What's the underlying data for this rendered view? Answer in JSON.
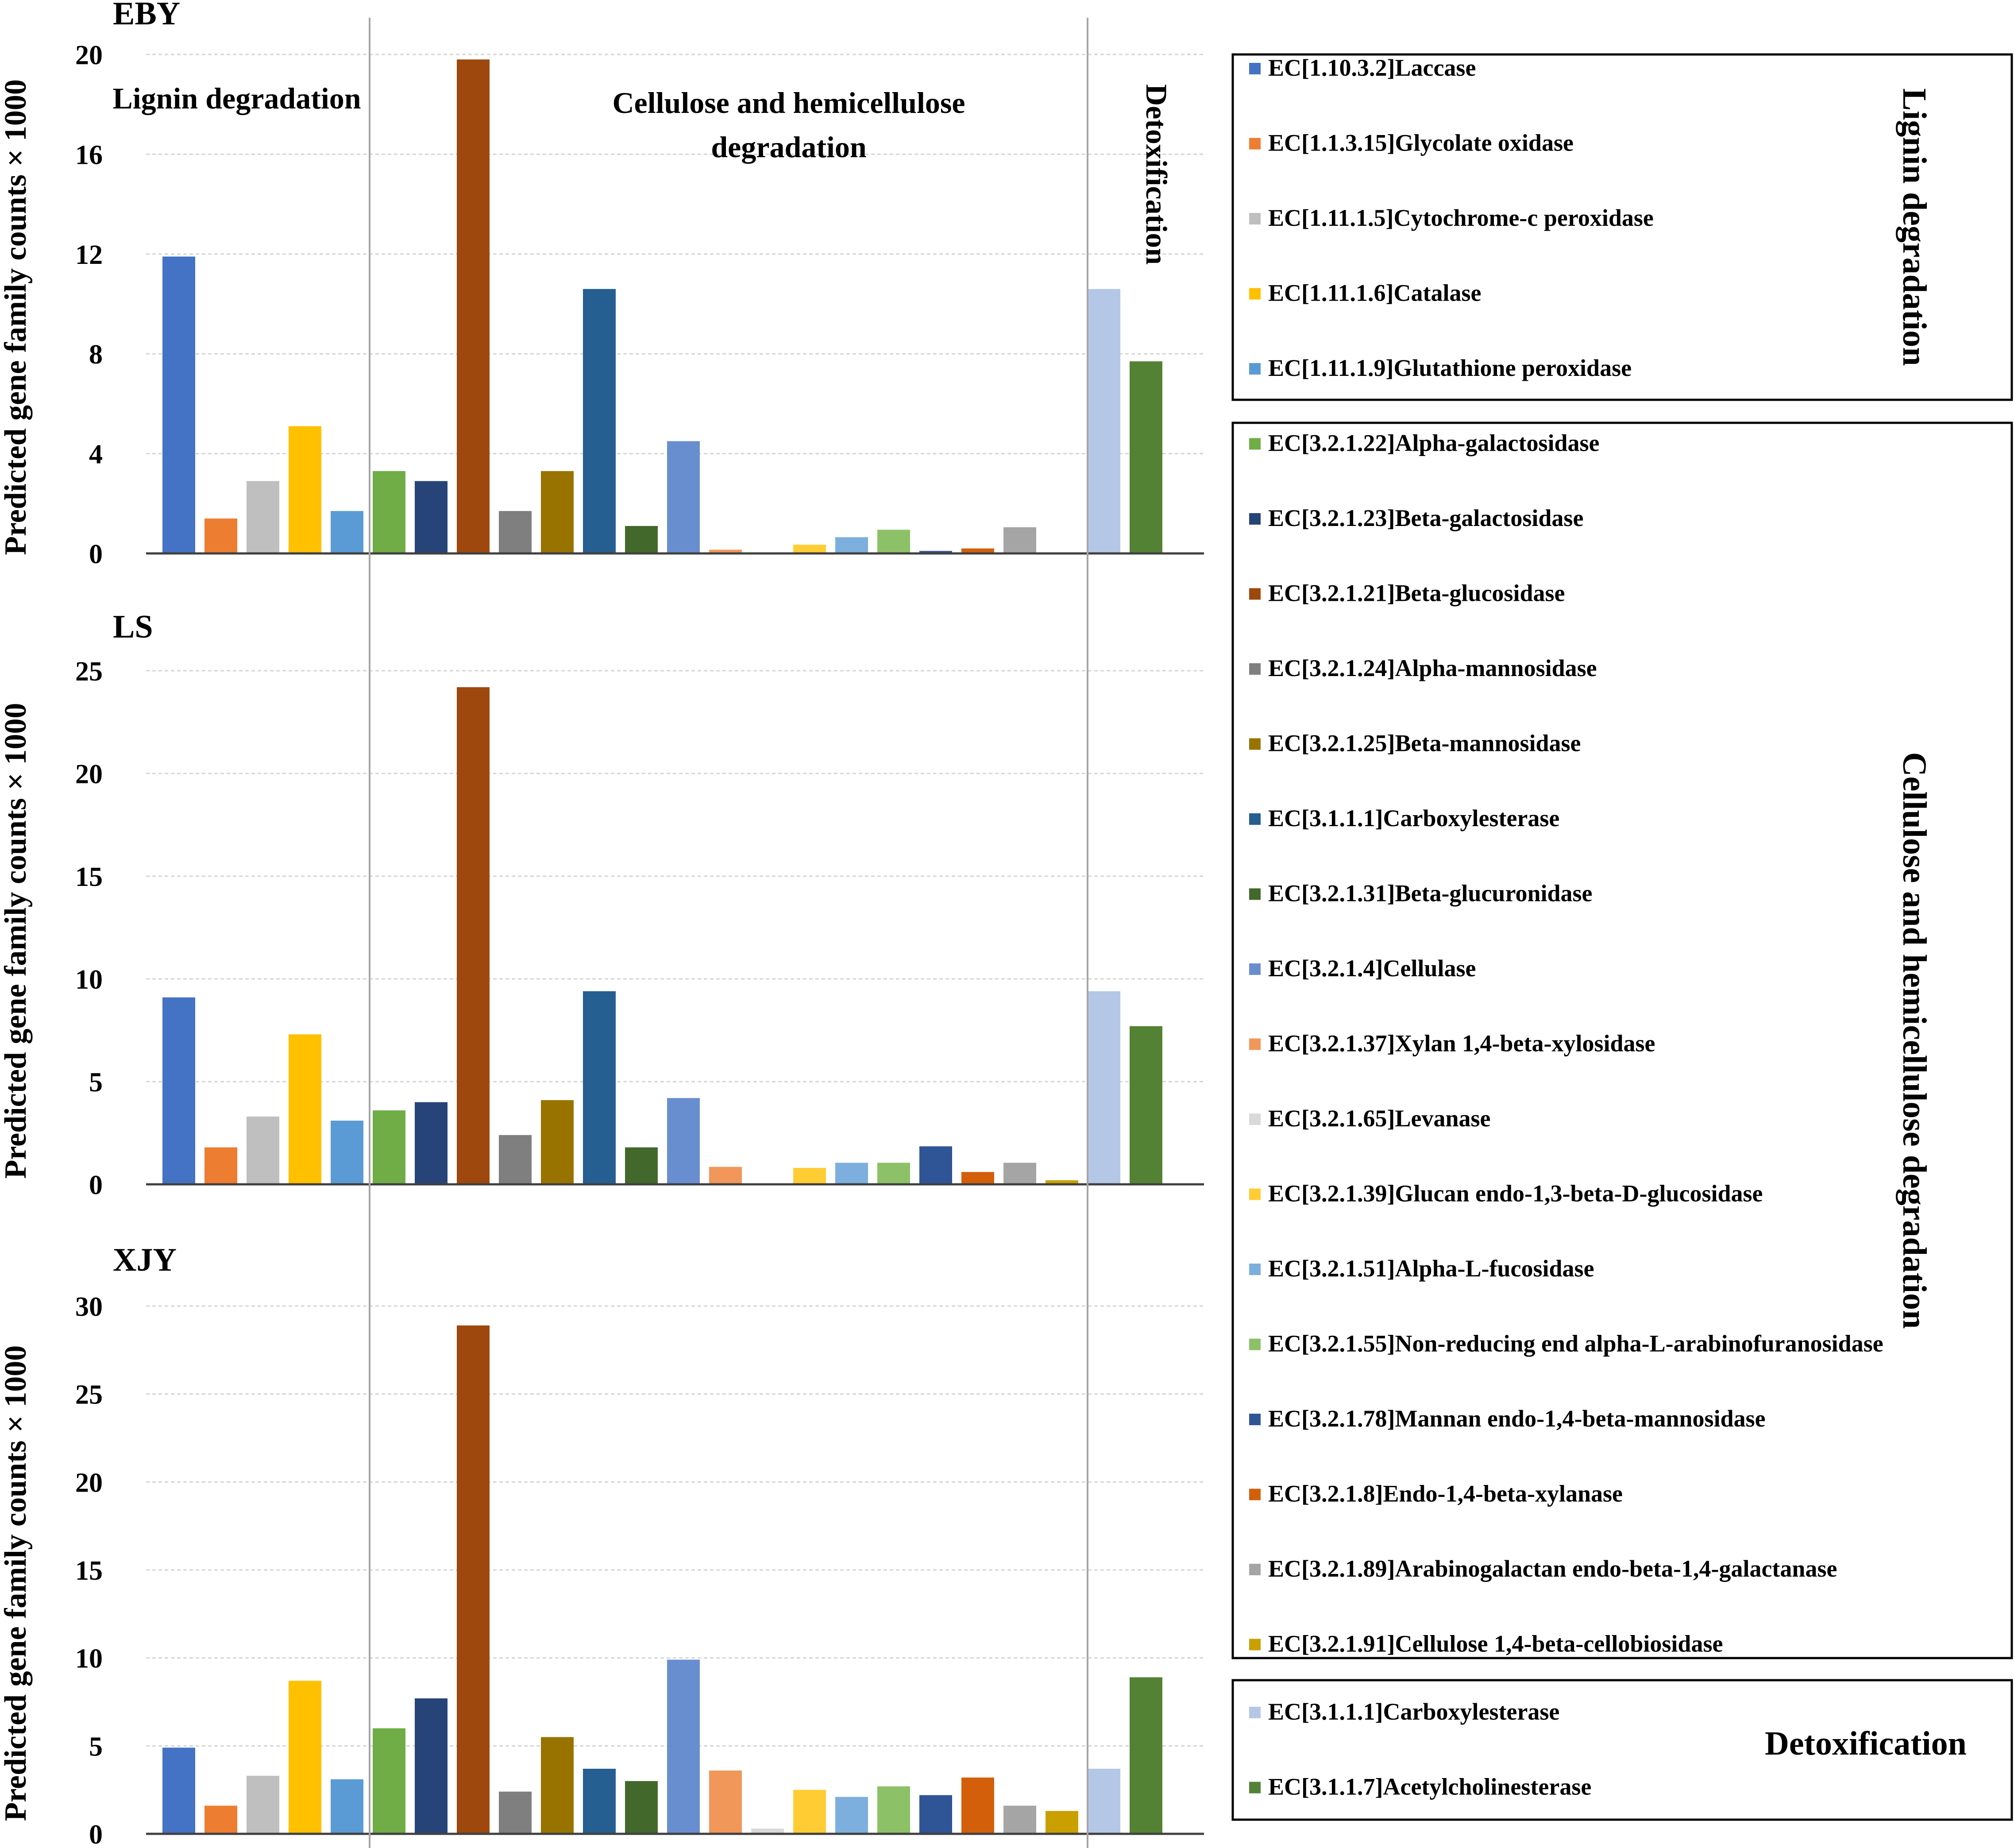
{
  "figure": {
    "ylabel": "Predicted gene family counts × 1000",
    "group_titles": [
      "Lignin degradation",
      "Cellulose and hemicellulose",
      "degradation",
      "Detoxification"
    ]
  },
  "legend": {
    "groups": [
      {
        "title": "Lignin degradation",
        "items": [
          {
            "label": "EC[1.10.3.2]Laccase",
            "color": "#4472C4"
          },
          {
            "label": "EC[1.1.3.15]Glycolate oxidase",
            "color": "#ED7D31"
          },
          {
            "label": "EC[1.11.1.5]Cytochrome-c peroxidase",
            "color": "#BFBFBF"
          },
          {
            "label": "EC[1.11.1.6]Catalase",
            "color": "#FFC000"
          },
          {
            "label": "EC[1.11.1.9]Glutathione peroxidase",
            "color": "#5B9BD5"
          }
        ]
      },
      {
        "title": "Cellulose and hemicellulose degradation",
        "items": [
          {
            "label": "EC[3.2.1.22]Alpha-galactosidase",
            "color": "#70AD47"
          },
          {
            "label": "EC[3.2.1.23]Beta-galactosidase",
            "color": "#264478"
          },
          {
            "label": "EC[3.2.1.21]Beta-glucosidase",
            "color": "#9E480E"
          },
          {
            "label": "EC[3.2.1.24]Alpha-mannosidase",
            "color": "#7F7F7F"
          },
          {
            "label": "EC[3.2.1.25]Beta-mannosidase",
            "color": "#997300"
          },
          {
            "label": "EC[3.1.1.1]Carboxylesterase",
            "color": "#255E91"
          },
          {
            "label": "EC[3.2.1.31]Beta-glucuronidase",
            "color": "#43682B"
          },
          {
            "label": "EC[3.2.1.4]Cellulase",
            "color": "#698ED0"
          },
          {
            "label": "EC[3.2.1.37]Xylan 1,4-beta-xylosidase",
            "color": "#F1975A"
          },
          {
            "label": "EC[3.2.1.65]Levanase",
            "color": "#D9D9D9"
          },
          {
            "label": "EC[3.2.1.39]Glucan endo-1,3-beta-D-glucosidase",
            "color": "#FFCD33"
          },
          {
            "label": "EC[3.2.1.51]Alpha-L-fucosidase",
            "color": "#7CAFDD"
          },
          {
            "label": "EC[3.2.1.55]Non-reducing end alpha-L-arabinofuranosidase",
            "color": "#8CC168"
          },
          {
            "label": "EC[3.2.1.78]Mannan endo-1,4-beta-mannosidase",
            "color": "#2F5597"
          },
          {
            "label": "EC[3.2.1.8]Endo-1,4-beta-xylanase",
            "color": "#D35F0B"
          },
          {
            "label": "EC[3.2.1.89]Arabinogalactan endo-beta-1,4-galactanase",
            "color": "#A5A5A5"
          },
          {
            "label": "EC[3.2.1.91]Cellulose 1,4-beta-cellobiosidase",
            "color": "#C9A000"
          }
        ]
      },
      {
        "title": "Detoxification",
        "items": [
          {
            "label": "EC[3.1.1.1]Carboxylesterase",
            "color": "#B4C7E7"
          },
          {
            "label": "EC[3.1.1.7]Acetylcholinesterase",
            "color": "#548235"
          }
        ]
      }
    ]
  },
  "chart_data": [
    {
      "type": "bar",
      "title": "EBY",
      "ylabel": "Predicted gene family counts × 1000",
      "ylim": [
        0,
        20
      ],
      "yticks": [
        0,
        4,
        8,
        12,
        16,
        20
      ],
      "values": [
        11.9,
        1.4,
        2.9,
        5.1,
        1.7,
        3.3,
        2.9,
        19.8,
        1.7,
        3.3,
        10.6,
        1.1,
        4.5,
        0.15,
        0,
        0.35,
        0.65,
        0.95,
        0.1,
        0.2,
        1.05,
        0,
        10.6,
        7.7
      ]
    },
    {
      "type": "bar",
      "title": "LS",
      "ylabel": "Predicted gene family counts × 1000",
      "ylim": [
        0,
        25
      ],
      "yticks": [
        0,
        5,
        10,
        15,
        20,
        25
      ],
      "values": [
        9.1,
        1.8,
        3.3,
        7.3,
        3.1,
        3.6,
        4.0,
        24.2,
        2.4,
        4.1,
        9.4,
        1.8,
        4.2,
        0.85,
        0,
        0.8,
        1.05,
        1.05,
        1.85,
        0.6,
        1.05,
        0.2,
        9.4,
        7.7
      ]
    },
    {
      "type": "bar",
      "title": "XJY",
      "ylabel": "Predicted gene family counts × 1000",
      "ylim": [
        0,
        30
      ],
      "yticks": [
        0,
        5,
        10,
        15,
        20,
        25,
        30
      ],
      "values": [
        4.9,
        1.6,
        3.3,
        8.7,
        3.1,
        6.0,
        7.7,
        28.9,
        2.4,
        5.5,
        3.7,
        3.0,
        9.9,
        3.6,
        0.3,
        2.5,
        2.1,
        2.7,
        2.2,
        3.2,
        1.6,
        1.3,
        3.7,
        8.9
      ]
    }
  ]
}
